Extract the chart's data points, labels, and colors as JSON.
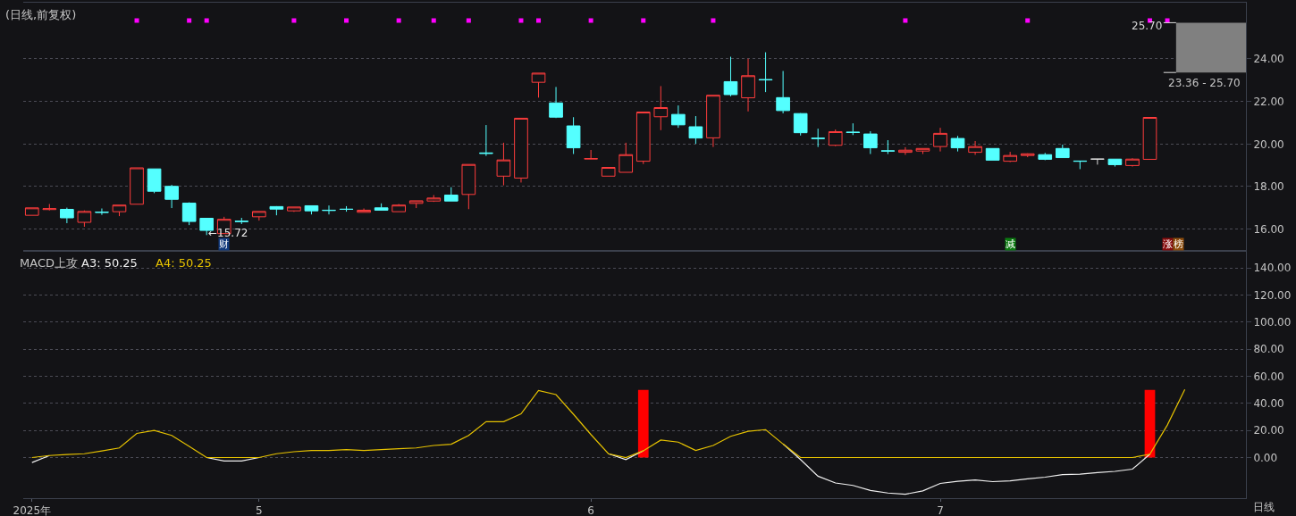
{
  "chart_data": [
    {
      "type": "candlestick",
      "title": "(日线,前复权)",
      "categories": [
        null,
        null,
        null,
        null,
        null,
        null,
        null,
        null,
        null,
        null,
        null,
        null,
        null,
        null,
        null,
        null,
        null,
        null,
        null,
        null,
        null,
        null,
        null,
        null,
        null,
        null,
        null,
        null,
        null,
        null,
        null,
        null,
        null,
        null,
        null,
        null,
        null,
        null,
        null,
        null,
        null,
        null,
        null,
        null,
        null,
        null,
        null,
        null,
        null,
        null,
        null,
        null,
        null,
        null,
        null,
        null,
        null,
        null,
        null,
        null,
        null,
        null,
        null,
        null,
        null,
        null,
        null,
        null,
        null,
        null
      ],
      "ohlc": [
        [
          16.65,
          17.0,
          16.65,
          17.0
        ],
        [
          16.92,
          17.18,
          16.88,
          16.96
        ],
        [
          16.93,
          17.01,
          16.28,
          16.53
        ],
        [
          16.32,
          16.88,
          16.11,
          16.83
        ],
        [
          16.8,
          16.97,
          16.67,
          16.79
        ],
        [
          16.82,
          17.13,
          16.61,
          17.13
        ],
        [
          17.17,
          18.88,
          17.17,
          18.88
        ],
        [
          18.83,
          18.83,
          17.69,
          17.78
        ],
        [
          18.01,
          18.08,
          16.99,
          17.4
        ],
        [
          17.22,
          17.26,
          16.19,
          16.36
        ],
        [
          16.51,
          16.51,
          15.72,
          15.94
        ],
        [
          15.79,
          16.58,
          15.79,
          16.46
        ],
        [
          16.37,
          16.53,
          16.24,
          16.36
        ],
        [
          16.58,
          16.83,
          16.4,
          16.83
        ],
        [
          17.06,
          17.08,
          16.65,
          16.94
        ],
        [
          16.86,
          17.04,
          16.81,
          17.04
        ],
        [
          17.1,
          17.1,
          16.69,
          16.86
        ],
        [
          16.89,
          17.11,
          16.69,
          16.88
        ],
        [
          16.94,
          17.08,
          16.82,
          16.93
        ],
        [
          16.79,
          16.97,
          16.79,
          16.89
        ],
        [
          17.0,
          17.21,
          16.88,
          16.89
        ],
        [
          16.82,
          17.18,
          16.82,
          17.13
        ],
        [
          17.21,
          17.33,
          16.99,
          17.33
        ],
        [
          17.32,
          17.6,
          17.28,
          17.46
        ],
        [
          17.6,
          17.97,
          17.32,
          17.32
        ],
        [
          17.63,
          19.04,
          16.94,
          19.04
        ],
        [
          19.58,
          20.89,
          19.44,
          19.56
        ],
        [
          18.49,
          20.06,
          18.06,
          19.25
        ],
        [
          18.4,
          21.21,
          18.19,
          21.21
        ],
        [
          22.9,
          23.33,
          22.18,
          23.33
        ],
        [
          21.93,
          22.68,
          21.22,
          21.26
        ],
        [
          20.85,
          21.26,
          19.53,
          19.82
        ],
        [
          19.3,
          19.72,
          19.3,
          19.31
        ],
        [
          18.49,
          18.92,
          18.49,
          18.9
        ],
        [
          18.67,
          20.06,
          18.67,
          19.5
        ],
        [
          19.19,
          21.5,
          19.06,
          21.5
        ],
        [
          21.28,
          22.72,
          20.65,
          21.71
        ],
        [
          21.39,
          21.81,
          20.76,
          20.9
        ],
        [
          20.81,
          21.31,
          20.01,
          20.28
        ],
        [
          20.29,
          22.29,
          19.86,
          22.29
        ],
        [
          22.93,
          24.1,
          22.24,
          22.32
        ],
        [
          22.17,
          24.01,
          21.53,
          23.21
        ],
        [
          23.03,
          24.31,
          22.44,
          23.01
        ],
        [
          22.18,
          23.43,
          21.44,
          21.57
        ],
        [
          21.43,
          21.45,
          20.4,
          20.53
        ],
        [
          20.27,
          20.72,
          19.86,
          20.26
        ],
        [
          19.94,
          20.68,
          19.9,
          20.58
        ],
        [
          20.56,
          20.97,
          20.42,
          20.54
        ],
        [
          20.47,
          20.6,
          19.53,
          19.82
        ],
        [
          19.68,
          20.18,
          19.53,
          19.67
        ],
        [
          19.61,
          19.85,
          19.49,
          19.71
        ],
        [
          19.67,
          19.79,
          19.53,
          19.79
        ],
        [
          19.88,
          20.76,
          19.65,
          20.5
        ],
        [
          20.26,
          20.38,
          19.65,
          19.82
        ],
        [
          19.61,
          20.14,
          19.49,
          19.88
        ],
        [
          19.79,
          19.79,
          19.24,
          19.24
        ],
        [
          19.19,
          19.63,
          19.15,
          19.46
        ],
        [
          19.46,
          19.56,
          19.38,
          19.54
        ],
        [
          19.5,
          19.58,
          19.24,
          19.28
        ],
        [
          19.79,
          19.97,
          19.35,
          19.36
        ],
        [
          19.2,
          19.21,
          18.82,
          19.19
        ],
        [
          19.29,
          19.29,
          19.03,
          19.29
        ],
        [
          19.29,
          19.29,
          18.94,
          19.03
        ],
        [
          18.99,
          19.33,
          18.94,
          19.29
        ],
        [
          19.28,
          21.25,
          19.28,
          21.25
        ],
        null,
        null,
        null,
        null,
        null
      ],
      "colors": [
        "#ff3d3d",
        "#ff3d3d",
        "#54ffff",
        "#ff3d3d",
        "#54ffff",
        "#ff3d3d",
        "#ff3d3d",
        "#54ffff",
        "#54ffff",
        "#54ffff",
        "#54ffff",
        "#ff3d3d",
        "#54ffff",
        "#ff3d3d",
        "#54ffff",
        "#ff3d3d",
        "#54ffff",
        "#54ffff",
        "#54ffff",
        "#ff3d3d",
        "#54ffff",
        "#ff3d3d",
        "#ff3d3d",
        "#ff3d3d",
        "#54ffff",
        "#ff3d3d",
        "#54ffff",
        "#ff3d3d",
        "#ff3d3d",
        "#ff3d3d",
        "#54ffff",
        "#54ffff",
        "#ff3d3d",
        "#ff3d3d",
        "#ff3d3d",
        "#ff3d3d",
        "#ff3d3d",
        "#54ffff",
        "#54ffff",
        "#ff3d3d",
        "#54ffff",
        "#ff3d3d",
        "#54ffff",
        "#54ffff",
        "#54ffff",
        "#54ffff",
        "#ff3d3d",
        "#54ffff",
        "#54ffff",
        "#54ffff",
        "#ff3d3d",
        "#ff3d3d",
        "#ff3d3d",
        "#54ffff",
        "#ff3d3d",
        "#54ffff",
        "#ff3d3d",
        "#ff3d3d",
        "#54ffff",
        "#54ffff",
        "#54ffff",
        "#dcdcdc",
        "#54ffff",
        "#ff3d3d",
        "#ff3d3d",
        null,
        null,
        null,
        null,
        null
      ],
      "series": [
        {
          "type": "scatter",
          "color": "#ff00ff",
          "values": [
            null,
            null,
            null,
            null,
            null,
            null,
            25.8,
            null,
            null,
            25.8,
            25.8,
            null,
            null,
            null,
            null,
            25.8,
            null,
            null,
            25.8,
            null,
            null,
            25.8,
            null,
            25.8,
            null,
            25.8,
            null,
            null,
            25.8,
            25.8,
            null,
            null,
            25.8,
            null,
            null,
            25.8,
            null,
            null,
            null,
            25.8,
            null,
            null,
            null,
            null,
            null,
            null,
            null,
            null,
            null,
            null,
            25.8,
            null,
            null,
            null,
            null,
            null,
            null,
            25.8,
            null,
            null,
            null,
            null,
            null,
            null,
            25.8,
            25.8,
            null,
            null,
            null,
            null
          ]
        }
      ],
      "marker": "square",
      "ylim": [
        15.0,
        26.64
      ],
      "yticks": [
        {
          "value": 16,
          "label": "16.00"
        },
        {
          "value": 18,
          "label": "18.00"
        },
        {
          "value": 20,
          "label": "20.00"
        },
        {
          "value": 22,
          "label": "22.00"
        },
        {
          "value": 24,
          "label": "24.00"
        }
      ],
      "grid": "y",
      "bands": [
        {
          "axis": "y",
          "from": 23.36,
          "to": 25.7,
          "label": "23.36 - 25.70",
          "color": "#808080"
        }
      ],
      "annotations": [
        {
          "text": "←15.72",
          "y": 15.72
        },
        "财",
        "减",
        "涨",
        "榜",
        {
          "text": "25.70",
          "y": 25.7
        }
      ]
    },
    {
      "type": "line",
      "title": "MACD上攻",
      "categories": [
        "2025年",
        null,
        null,
        null,
        null,
        null,
        null,
        null,
        null,
        null,
        null,
        null,
        null,
        "5",
        null,
        null,
        null,
        null,
        null,
        null,
        null,
        null,
        null,
        null,
        null,
        null,
        null,
        null,
        null,
        null,
        null,
        null,
        "6",
        null,
        null,
        null,
        null,
        null,
        null,
        null,
        null,
        null,
        null,
        null,
        null,
        null,
        null,
        null,
        null,
        null,
        null,
        null,
        "7",
        null,
        null,
        null,
        null,
        null,
        null,
        null,
        null,
        null,
        null,
        null,
        null,
        null,
        null,
        null,
        null,
        null
      ],
      "series": [
        {
          "name": "A3: 50.25",
          "color": "#f0f0f0",
          "values": [
            -3.7,
            1.5,
            null,
            null,
            null,
            null,
            null,
            null,
            null,
            null,
            0,
            -2.5,
            -2.5,
            0,
            null,
            null,
            null,
            null,
            null,
            null,
            null,
            null,
            null,
            null,
            null,
            null,
            null,
            null,
            null,
            null,
            null,
            null,
            null,
            2.8,
            -1.5,
            5,
            null,
            null,
            null,
            null,
            null,
            null,
            null,
            10,
            -1.5,
            -13.8,
            -18.8,
            -20.6,
            -24.3,
            -26.2,
            -27.1,
            -24.6,
            -19.1,
            -17.5,
            -16.6,
            -17.8,
            -17.2,
            -15.7,
            -14.5,
            -12.6,
            -12.3,
            -11.1,
            -10.2,
            -8.6,
            2.5,
            null,
            null,
            null,
            null,
            null
          ]
        },
        {
          "name": "A4: 50.25",
          "color": "#e6c200",
          "values": [
            0,
            1.5,
            2.2,
            2.8,
            4.9,
            7.1,
            17.8,
            20.0,
            16.3,
            8.3,
            0,
            0,
            0,
            0,
            2.8,
            4.3,
            5.2,
            5.2,
            5.8,
            5.2,
            5.8,
            6.5,
            7.1,
            8.9,
            9.8,
            16.3,
            26.5,
            26.5,
            32.3,
            49.5,
            46.5,
            32,
            17,
            2.8,
            0,
            5,
            12.9,
            11.4,
            5.2,
            8.9,
            15.7,
            19.4,
            20.6,
            10,
            0,
            0,
            0,
            0,
            0,
            0,
            0,
            0,
            0,
            0,
            0,
            0,
            0,
            0,
            0,
            0,
            0,
            0,
            0,
            0,
            2.5,
            24,
            50.25,
            null,
            null,
            null
          ]
        },
        {
          "type": "bar",
          "color": "#ff0000",
          "values": [
            null,
            null,
            null,
            null,
            null,
            null,
            null,
            null,
            null,
            null,
            null,
            null,
            null,
            null,
            null,
            null,
            null,
            null,
            null,
            null,
            null,
            null,
            null,
            null,
            null,
            null,
            null,
            null,
            null,
            null,
            null,
            null,
            null,
            null,
            null,
            50,
            null,
            null,
            null,
            null,
            null,
            null,
            null,
            null,
            null,
            null,
            null,
            null,
            null,
            null,
            null,
            null,
            null,
            null,
            null,
            null,
            null,
            null,
            null,
            null,
            null,
            null,
            null,
            null,
            50,
            null,
            null,
            null,
            null,
            null
          ]
        }
      ],
      "ylim": [
        -30,
        153
      ],
      "yticks": [
        {
          "value": 0,
          "label": "0.00"
        },
        {
          "value": 20,
          "label": "20.00"
        },
        {
          "value": 40,
          "label": "40.00"
        },
        {
          "value": 60,
          "label": "60.00"
        },
        {
          "value": 80,
          "label": "80.00"
        },
        {
          "value": 100,
          "label": "100.00"
        },
        {
          "value": 120,
          "label": "120.00"
        },
        {
          "value": 140,
          "label": "140.00"
        }
      ],
      "grid": "y",
      "annotations": [
        "日线"
      ]
    }
  ]
}
